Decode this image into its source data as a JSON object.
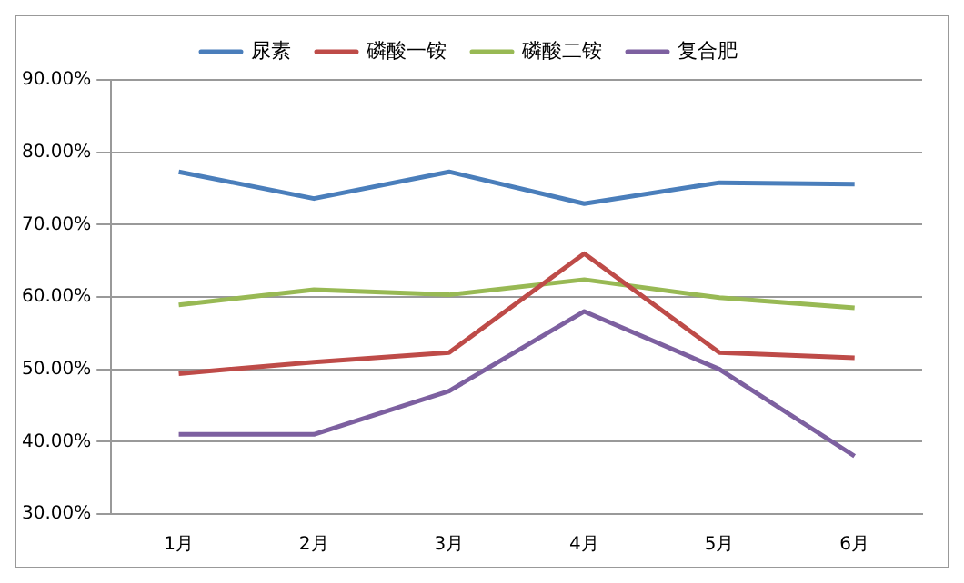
{
  "chart_data": {
    "type": "line",
    "categories": [
      "1月",
      "2月",
      "3月",
      "4月",
      "5月",
      "6月"
    ],
    "series": [
      {
        "name": "尿素",
        "color": "#4a7ebb",
        "values": [
          77.3,
          73.6,
          77.3,
          72.9,
          75.8,
          75.6
        ]
      },
      {
        "name": "磷酸一铵",
        "color": "#be4b48",
        "values": [
          49.4,
          51.0,
          52.3,
          66.0,
          52.3,
          51.6
        ]
      },
      {
        "name": "磷酸二铵",
        "color": "#98b954",
        "values": [
          58.9,
          61.0,
          60.3,
          62.4,
          59.9,
          58.5
        ]
      },
      {
        "name": "复合肥",
        "color": "#7d60a0",
        "values": [
          41,
          41,
          47,
          58,
          50,
          38
        ]
      }
    ],
    "ylim": [
      30,
      90
    ],
    "yticks": [
      {
        "value": 30,
        "label": "30.00%"
      },
      {
        "value": 40,
        "label": "40.00%"
      },
      {
        "value": 50,
        "label": "50.00%"
      },
      {
        "value": 60,
        "label": "60.00%"
      },
      {
        "value": 70,
        "label": "70.00%"
      },
      {
        "value": 80,
        "label": "80.00%"
      },
      {
        "value": 90,
        "label": "90.00%"
      }
    ],
    "grid": "y",
    "legend": "top",
    "marker": "none"
  }
}
